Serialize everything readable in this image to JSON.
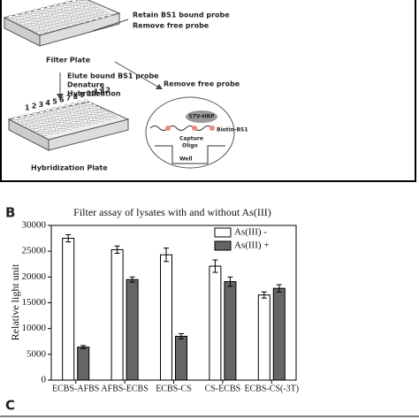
{
  "diagram": {
    "retain": "Retain BS1 bound probe",
    "remove1": "Remove free probe",
    "filter_plate": "Filter Plate",
    "elute": "Elute bound BS1 probe",
    "denature": "Denature",
    "hybridization": "Hybridization",
    "remove2": "Remove free probe",
    "stv": "STV-HRP",
    "biotin": "Biotin-BS1",
    "capture": "Capture",
    "oligo": "Oligo",
    "well": "Well",
    "hyb_plate": "Hybridization Plate",
    "columns": [
      "1",
      "2",
      "3",
      "4",
      "5",
      "6",
      "7",
      "8",
      "9",
      "10",
      "11",
      "12"
    ]
  },
  "panels": [
    "B",
    "C"
  ],
  "chart_data": {
    "type": "bar",
    "title": "Filter assay of lysates with and without As(III)",
    "y_label": "Relative light unit",
    "categories": [
      "ECBS-AFBS",
      "AFBS-ECBS",
      "ECBS-CS",
      "CS-ECBS",
      "ECBS-CS(-3T)"
    ],
    "series": [
      {
        "name": "As(III) -",
        "color": "#ffffff",
        "values": [
          27500,
          25300,
          24300,
          22100,
          16500
        ],
        "errors": [
          700,
          700,
          1300,
          1200,
          600
        ]
      },
      {
        "name": "As(III) +",
        "color": "#666666",
        "values": [
          6400,
          19500,
          8500,
          19100,
          17800
        ],
        "errors": [
          300,
          500,
          500,
          900,
          700
        ]
      }
    ],
    "ylim": [
      0,
      30000
    ],
    "yticks": [
      0,
      5000,
      10000,
      15000,
      20000,
      25000,
      30000
    ],
    "legend": "upper right"
  }
}
